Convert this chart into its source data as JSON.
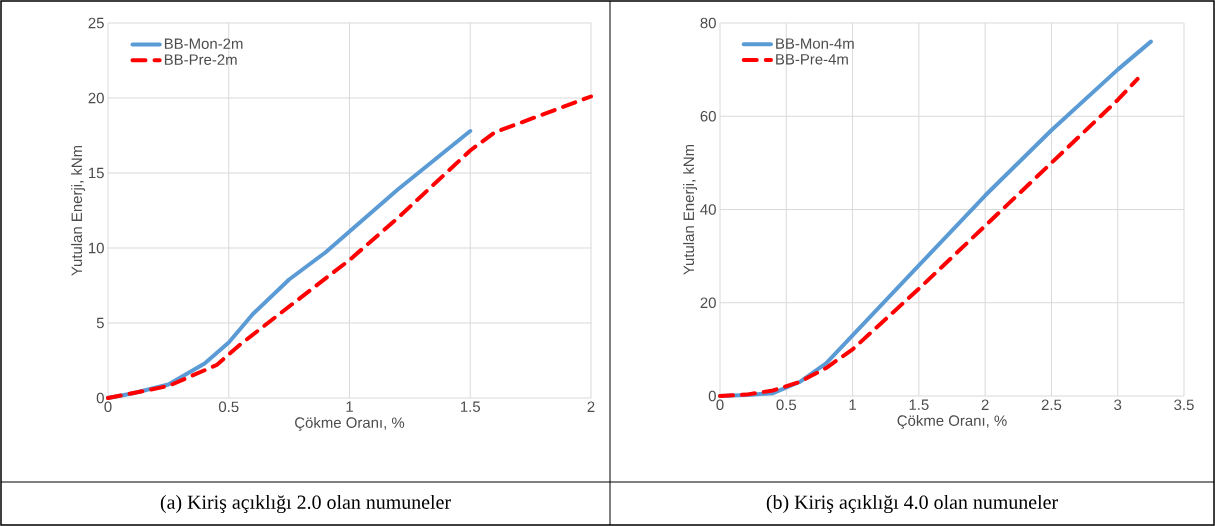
{
  "chart_data": [
    {
      "type": "line",
      "xlabel": "Çökme Oranı, %",
      "ylabel": "Yutulan Enerji, kNm",
      "xlim": [
        0,
        2
      ],
      "ylim": [
        0,
        25
      ],
      "xticks": [
        0,
        0.5,
        1,
        1.5,
        2
      ],
      "yticks": [
        0,
        5,
        10,
        15,
        20,
        25
      ],
      "grid": true,
      "legend": "top left",
      "series": [
        {
          "name": "BB-Mon-2m",
          "color": "#5b9bd5",
          "line_style": "solid",
          "x": [
            0,
            0.1,
            0.25,
            0.4,
            0.5,
            0.6,
            0.75,
            0.9,
            1,
            1.2,
            1.4,
            1.5
          ],
          "values": [
            0,
            0.3,
            0.9,
            2.3,
            3.7,
            5.6,
            7.9,
            9.7,
            11.1,
            13.9,
            16.5,
            17.8
          ]
        },
        {
          "name": "BB-Pre-2m",
          "color": "#ff0000",
          "line_style": "dashed",
          "x": [
            0,
            0.25,
            0.45,
            0.55,
            0.75,
            1,
            1.2,
            1.4,
            1.5,
            1.6,
            1.8,
            2
          ],
          "values": [
            0,
            0.8,
            2.2,
            3.6,
            6.1,
            9.2,
            12,
            15,
            16.5,
            17.7,
            18.9,
            20.1
          ]
        }
      ],
      "annotations": [
        "(a) Kiriş açıklığı 2.0 olan numuneler"
      ]
    },
    {
      "type": "line",
      "xlabel": "Çökme Oranı, %",
      "ylabel": "Yutulan Enerji, kNm",
      "xlim": [
        0,
        3.5
      ],
      "ylim": [
        0,
        80
      ],
      "xticks": [
        0,
        0.5,
        1,
        1.5,
        2,
        2.5,
        3,
        3.5
      ],
      "yticks": [
        0,
        20,
        40,
        60,
        80
      ],
      "grid": true,
      "legend": "top left",
      "series": [
        {
          "name": "BB-Mon-4m",
          "color": "#5b9bd5",
          "line_style": "solid",
          "x": [
            0,
            0.2,
            0.4,
            0.6,
            0.8,
            1,
            1.5,
            2,
            2.5,
            3,
            3.25
          ],
          "values": [
            0,
            0.2,
            0.6,
            3,
            7,
            13,
            28,
            43,
            57,
            70,
            76
          ]
        },
        {
          "name": "BB-Pre-4m",
          "color": "#ff0000",
          "line_style": "dashed",
          "x": [
            0,
            0.2,
            0.4,
            0.6,
            0.8,
            1,
            1.5,
            2,
            2.5,
            3,
            3.15
          ],
          "values": [
            0,
            0.3,
            1.2,
            3,
            6,
            10,
            23,
            36.5,
            50,
            63.5,
            68
          ]
        }
      ],
      "annotations": [
        "(b) Kiriş açıklığı 4.0 olan numuneler"
      ]
    }
  ]
}
